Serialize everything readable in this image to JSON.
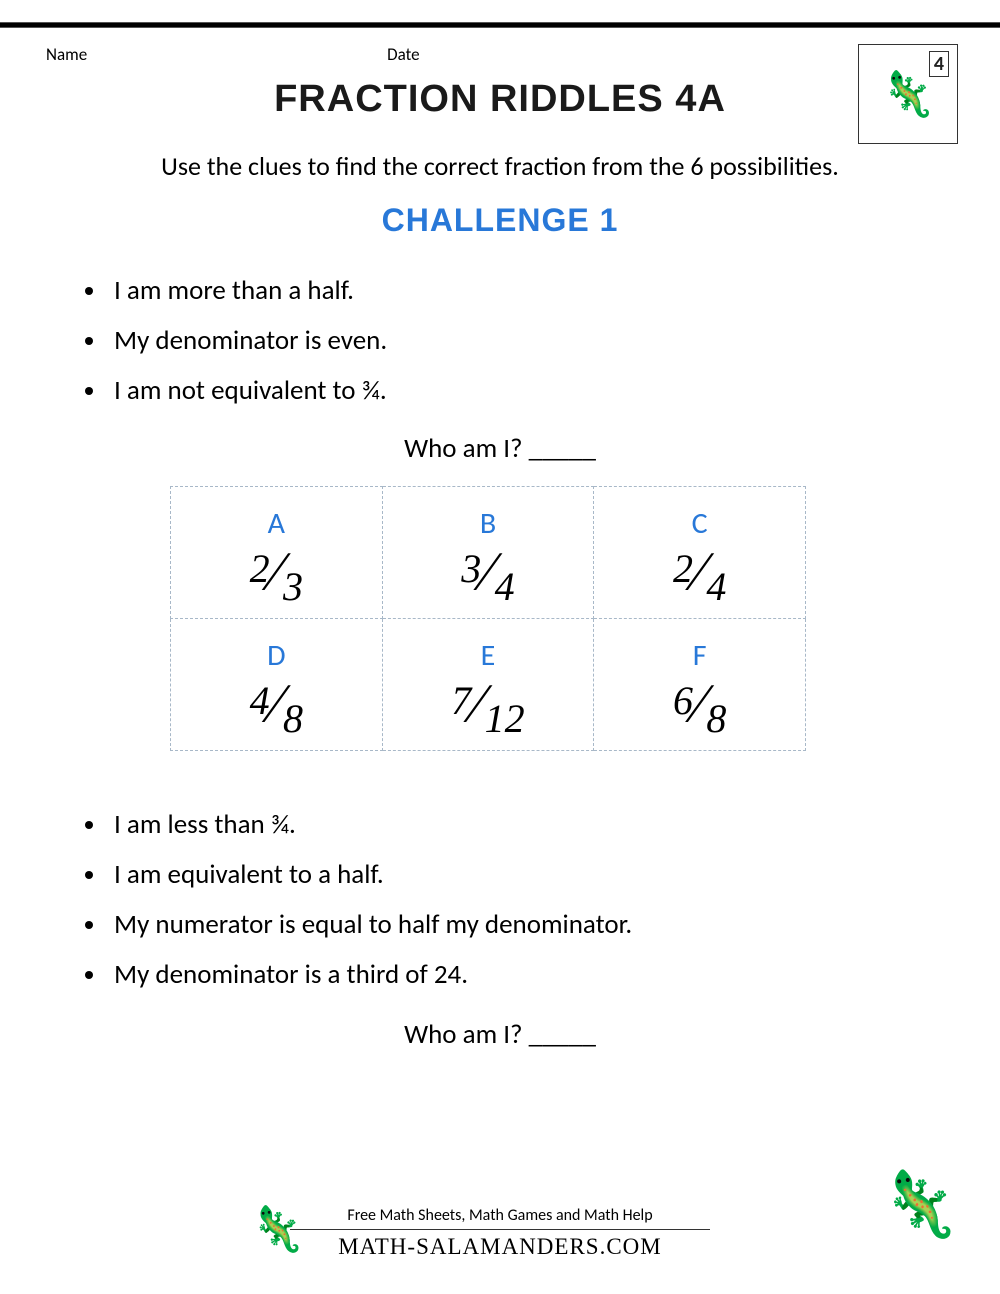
{
  "header": {
    "name_label": "Name",
    "date_label": "Date",
    "grade_badge": "4",
    "logo_text": "🦎"
  },
  "title": "FRACTION RIDDLES 4A",
  "subtitle": "Use the clues to find the correct fraction from the 6 possibilities.",
  "challenge_label": "CHALLENGE 1",
  "clues1": {
    "c1": "I am more than a half.",
    "c2": "My denominator is even.",
    "c3": "I am not equivalent to ¾."
  },
  "who_prompt": "Who am I? _____",
  "table": {
    "cells": {
      "A": {
        "label": "A",
        "num": "2",
        "den": "3"
      },
      "B": {
        "label": "B",
        "num": "3",
        "den": "4"
      },
      "C": {
        "label": "C",
        "num": "2",
        "den": "4"
      },
      "D": {
        "label": "D",
        "num": "4",
        "den": "8"
      },
      "E": {
        "label": "E",
        "num": "7",
        "den": "12"
      },
      "F": {
        "label": "F",
        "num": "6",
        "den": "8"
      }
    },
    "border_color": "#a8b8c8",
    "label_color": "#2878d8"
  },
  "clues2": {
    "c1": "I am less than ¾.",
    "c2": "I am equivalent to a half.",
    "c3": "My numerator is equal to half my denominator.",
    "c4": "My denominator is a third of 24."
  },
  "footer": {
    "tagline": "Free Math Sheets, Math Games and Math Help",
    "brand": "MATH-SALAMANDERS.COM"
  },
  "colors": {
    "accent_blue": "#2878d8",
    "text": "#000000",
    "background": "#ffffff"
  }
}
